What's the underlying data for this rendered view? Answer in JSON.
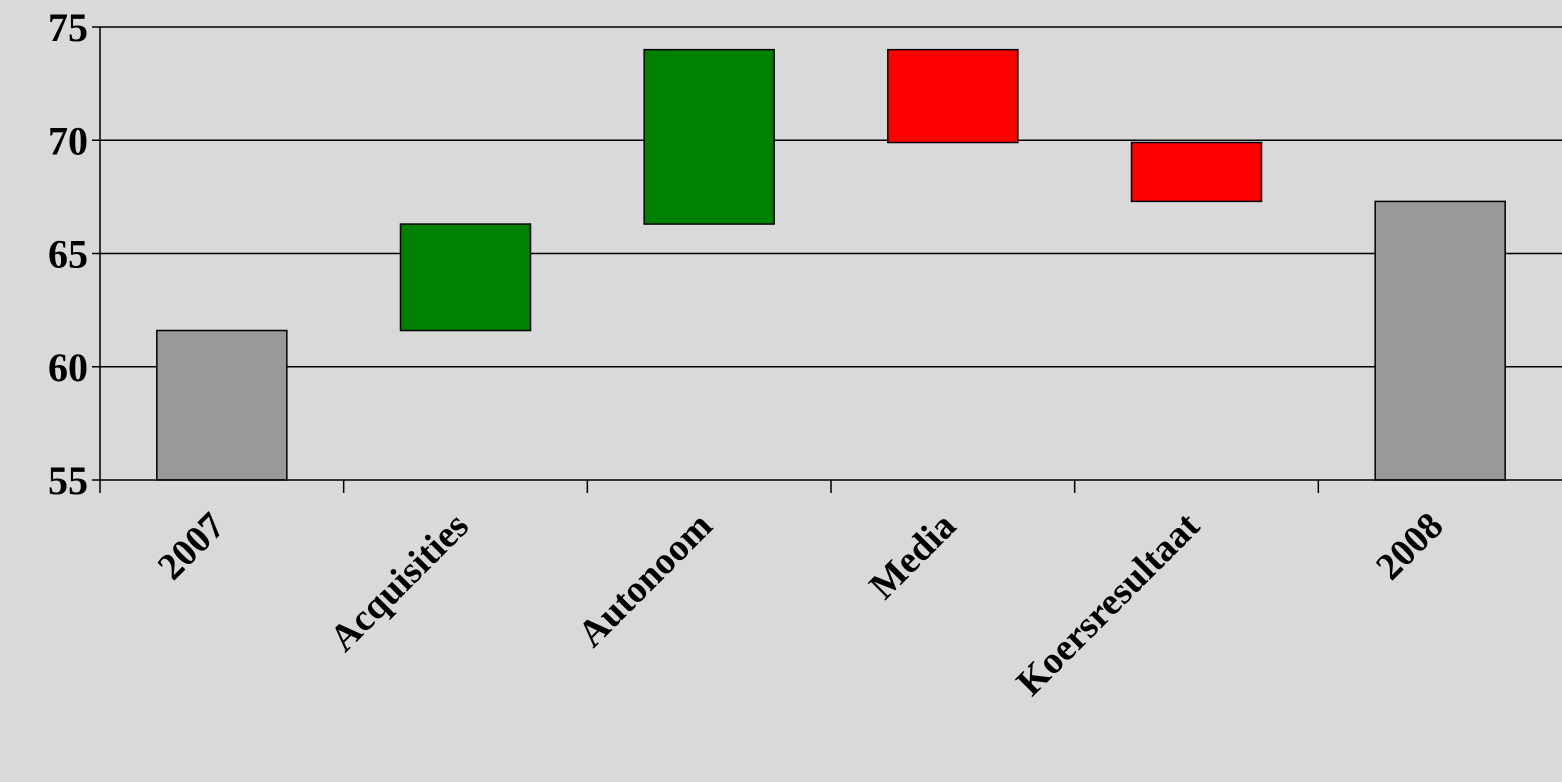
{
  "chart_data": {
    "type": "bar",
    "subtype": "waterfall",
    "title": "",
    "xlabel": "",
    "ylabel": "",
    "ylim": [
      55,
      75
    ],
    "yticks": [
      "55",
      "60",
      "65",
      "70",
      "75"
    ],
    "grid": true,
    "legend": "none",
    "categories": [
      "2007",
      "Acquisities",
      "Autonoom",
      "Media",
      "Koersresultaat",
      "2008"
    ],
    "bars": [
      {
        "category": "2007",
        "kind": "total",
        "start": 55,
        "end": 61.6
      },
      {
        "category": "Acquisities",
        "kind": "increase",
        "start": 61.6,
        "end": 66.3
      },
      {
        "category": "Autonoom",
        "kind": "increase",
        "start": 66.3,
        "end": 74.0
      },
      {
        "category": "Media",
        "kind": "decrease",
        "start": 74.0,
        "end": 69.9
      },
      {
        "category": "Koersresultaat",
        "kind": "decrease",
        "start": 69.9,
        "end": 67.3
      },
      {
        "category": "2008",
        "kind": "total",
        "start": 55,
        "end": 67.3
      }
    ],
    "colors": {
      "background": "#d9d9d9",
      "total": "#999999",
      "increase": "#008000",
      "decrease": "#ff0000",
      "gridline": "#000000",
      "bar_border": "#000000"
    }
  }
}
